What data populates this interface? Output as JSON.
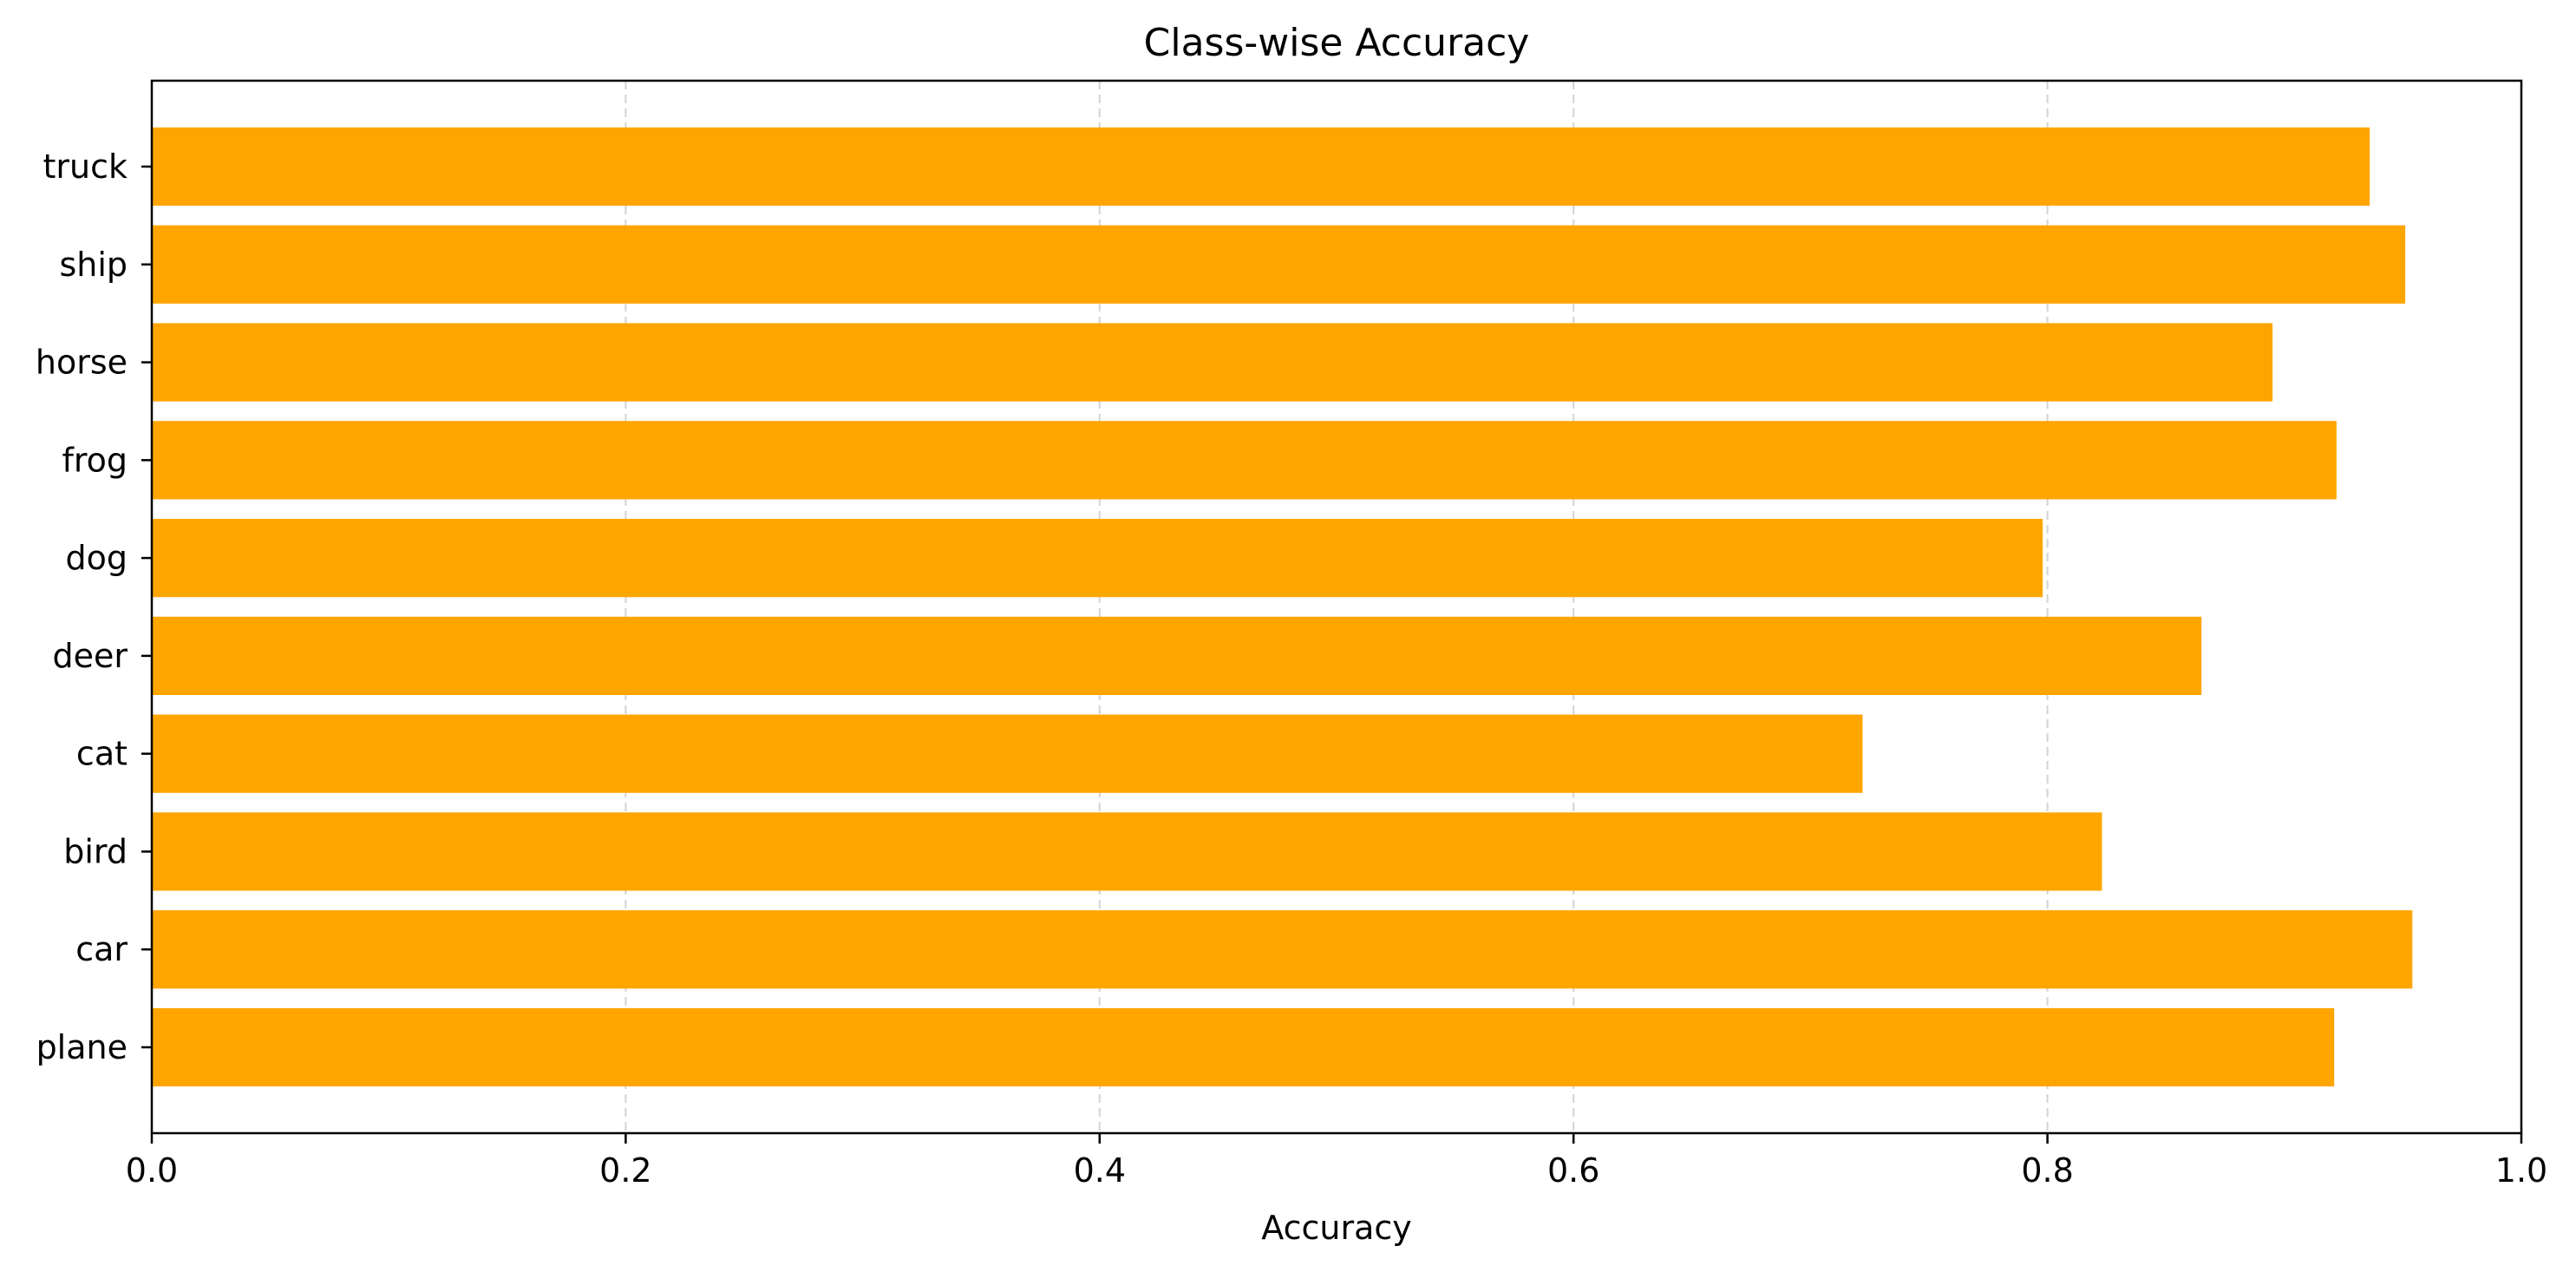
{
  "chart_data": {
    "type": "bar",
    "orientation": "horizontal",
    "title": "Class-wise Accuracy",
    "xlabel": "Accuracy",
    "ylabel": "",
    "xlim": [
      0,
      1
    ],
    "xticks": [
      "0.0",
      "0.2",
      "0.4",
      "0.6",
      "0.8",
      "1.0"
    ],
    "xtick_values": [
      0,
      0.2,
      0.4,
      0.6,
      0.8,
      1.0
    ],
    "grid": "x-axis dashed",
    "categories": [
      "plane",
      "car",
      "bird",
      "cat",
      "deer",
      "dog",
      "frog",
      "horse",
      "ship",
      "truck"
    ],
    "values": [
      0.921,
      0.954,
      0.823,
      0.722,
      0.865,
      0.798,
      0.922,
      0.895,
      0.951,
      0.936
    ],
    "colors": {
      "bar": "#FFA500",
      "grid": "#d3d3d3",
      "axes": "#000000"
    }
  }
}
